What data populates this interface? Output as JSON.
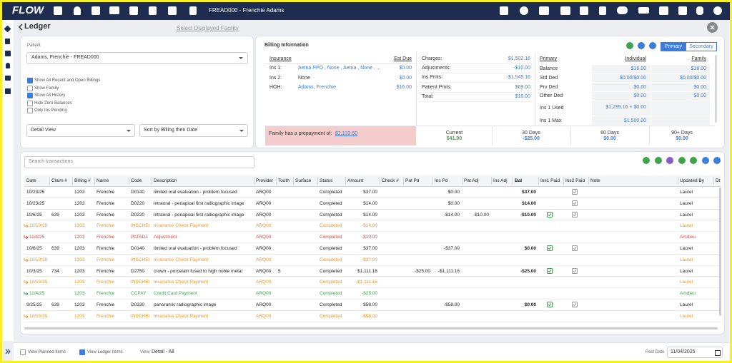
{
  "header": {
    "logo": "FLOW",
    "patient": "FREAD000 - Frenchie Adams"
  },
  "ledger": {
    "title": "Ledger",
    "facility": "Select Displayed Facility"
  },
  "patient_panel": {
    "label": "Patient",
    "patient": "Adams, Frenchie - FREAD000",
    "options": [
      {
        "label": "Show All Recent and Open Billings",
        "checked": true
      },
      {
        "label": "Show Family",
        "checked": false
      },
      {
        "label": "Show All History",
        "checked": true
      },
      {
        "label": "Hide Zero Balances",
        "checked": false
      },
      {
        "label": "Only Ins Pending",
        "checked": false
      }
    ],
    "view": "Detail View",
    "sort": "Sort by Billing then Date"
  },
  "billing": {
    "title": "Billing Information",
    "tabs": [
      {
        "label": "Primary",
        "active": true
      },
      {
        "label": "Secondary",
        "active": false
      }
    ],
    "insurance_header": [
      "Insurance",
      "Est Due"
    ],
    "insurance_rows": [
      [
        "Ins 1:",
        "Aetna PPO , None , Aetna , None , ...",
        "$0.00"
      ],
      [
        "Ins 2:",
        "None",
        "$0.00"
      ],
      [
        "HOH:",
        "Adams, Frenchie",
        "$16.00"
      ]
    ],
    "totals": [
      [
        "Charges:",
        "$1,502.16"
      ],
      [
        "Adjustments:",
        "-$10.00"
      ],
      [
        "Ins Pmts:",
        "-$1,545.16"
      ],
      [
        "Patient Pmts:",
        "$69.00"
      ],
      [
        "Total:",
        "$16.00"
      ]
    ],
    "deductible_header": [
      "Primary",
      "Individual",
      "Family"
    ],
    "deductible_rows": [
      [
        "Balance",
        "$16.00",
        "$16.00"
      ],
      [
        "Std Ded",
        "$0.00/$0.00",
        "$0.00/$0.00"
      ],
      [
        "Prv Ded",
        "$0.00",
        "$0.00"
      ],
      [
        "Other Ded",
        "$0.00",
        "$0.00"
      ],
      [
        "Ins 1 Used",
        "$1,295.16 + $0.00",
        null
      ],
      [
        "Ins 1 Max",
        "$1,500.00",
        null
      ]
    ],
    "prepayment_label": "Family has a prepayment of:",
    "prepayment_amount": "$2,133.50",
    "aging": [
      [
        "Current",
        "$41.00"
      ],
      [
        "30 Days",
        "-$25.00"
      ],
      [
        "60 Days",
        "$0.00"
      ],
      [
        "90+ Days",
        "$0.00"
      ]
    ]
  },
  "transactions": {
    "search_placeholder": "Search transactions",
    "columns": [
      "Date",
      "Claim #",
      "Billing #",
      "Name",
      "Code",
      "Description",
      "Provider",
      "Tooth",
      "Surface",
      "Status",
      "Amount",
      "Check #",
      "Pat Pd",
      "Ins Pd",
      "Pat Adj",
      "Ins Adj",
      "Bal",
      "Ins1 Paid",
      "Ins2 Paid",
      "Note",
      "Updated By",
      "Dt"
    ],
    "rows": [
      {
        "kind": "charge",
        "ins1_paid": false,
        "ins2_paid": true,
        "cells": [
          "10/23/25",
          null,
          "1203",
          "Frenchie",
          "D0140",
          "limited oral evaluation - problem focused",
          "ARQ00",
          null,
          null,
          "Completed",
          "$37.00",
          null,
          null,
          "$0.00",
          null,
          null,
          "$37.00",
          null,
          null,
          null,
          "Laurel",
          null
        ]
      },
      {
        "kind": "charge",
        "ins1_paid": false,
        "ins2_paid": true,
        "cells": [
          "10/23/25",
          null,
          "1203",
          "Frenchie",
          "D0220",
          "intraoral - periapical first radiographic image",
          "ARQ00",
          null,
          null,
          "Completed",
          "$14.00",
          null,
          null,
          "$0.00",
          null,
          null,
          "$14.00",
          null,
          null,
          null,
          "Laurel",
          null
        ]
      },
      {
        "kind": "charge",
        "ins1_paid": true,
        "ins2_paid": true,
        "cells": [
          "10/6/25",
          "639",
          "1203",
          "Frenchie",
          "D0220",
          "intraoral - periapical first radiographic image",
          "ARQ00",
          null,
          null,
          "Completed",
          "$14.00",
          null,
          null,
          "-$14.00",
          "-$10.00",
          null,
          "-$10.00",
          null,
          null,
          null,
          "Laurel",
          null
        ]
      },
      {
        "kind": "insurance_payment",
        "cells": [
          "10/10/25",
          null,
          "1203",
          "Frenchie",
          "INSCHECK",
          "Insurance Check Payment",
          "ARQ00",
          null,
          null,
          "Completed",
          "-$14.00",
          null,
          null,
          null,
          null,
          null,
          null,
          null,
          null,
          null,
          "Laurel",
          null
        ]
      },
      {
        "kind": "adjustment",
        "cells": [
          "11/4/25",
          null,
          "1203",
          "Frenchie",
          "PATADJ",
          "Adjustment",
          "ARQ00",
          null,
          null,
          "Completed",
          "-$10.00",
          null,
          null,
          null,
          null,
          null,
          null,
          null,
          null,
          null,
          "Amdieu",
          null
        ]
      },
      {
        "kind": "charge",
        "ins1_paid": true,
        "ins2_paid": true,
        "cells": [
          "10/6/25",
          "639",
          "1203",
          "Frenchie",
          "D0140",
          "limited oral evaluation - problem focused",
          "ARQ00",
          null,
          null,
          "Completed",
          "$37.00",
          null,
          null,
          "-$37.00",
          null,
          null,
          "$0.00",
          null,
          null,
          null,
          "Laurel",
          null
        ]
      },
      {
        "kind": "insurance_payment",
        "cells": [
          "10/10/25",
          null,
          "1203",
          "Frenchie",
          "INSCHECK",
          "Insurance Check Payment",
          "ARQ00",
          null,
          null,
          "Completed",
          "-$37.00",
          null,
          null,
          null,
          null,
          null,
          null,
          null,
          null,
          null,
          "Laurel",
          null
        ]
      },
      {
        "kind": "charge",
        "ins1_paid": true,
        "ins2_paid": true,
        "cells": [
          "10/3/25",
          "734",
          "1203",
          "Frenchie",
          "D2750",
          "crown - porcelain fused to high noble metal",
          "ARQ00",
          "5",
          null,
          "Completed",
          "$1,111.16",
          null,
          "-$25.00",
          "-$1,111.16",
          null,
          null,
          "-$25.00",
          null,
          null,
          null,
          "Laurel",
          null
        ]
      },
      {
        "kind": "insurance_payment",
        "cells": [
          "10/10/25",
          null,
          "1203",
          "Frenchie",
          "INSCHECK",
          "Insurance Check Payment",
          "ARQ00",
          null,
          null,
          "Completed",
          "-$1,111.16",
          null,
          null,
          null,
          null,
          null,
          null,
          null,
          null,
          null,
          "Laurel",
          null
        ]
      },
      {
        "kind": "patient_payment",
        "cells": [
          "11/4/25",
          null,
          "1203",
          "Frenchie",
          "CCPAY",
          "Credit Card Payment",
          "ARQ00",
          null,
          null,
          "Completed",
          "-$25.00",
          null,
          null,
          null,
          null,
          null,
          null,
          null,
          null,
          null,
          "Amdieu",
          null
        ]
      },
      {
        "kind": "charge",
        "ins1_paid": true,
        "ins2_paid": true,
        "cells": [
          "9/25/25",
          "639",
          "1203",
          "Frenchie",
          "D0330",
          "panoramic radiographic image",
          "ARQ00",
          null,
          null,
          "Completed",
          "$58.00",
          null,
          null,
          "-$58.00",
          null,
          null,
          "$0.00",
          null,
          null,
          null,
          "Laurel",
          null
        ]
      },
      {
        "kind": "insurance_payment",
        "cells": [
          "10/10/25",
          null,
          "1203",
          "Frenchie",
          "INSCHECK",
          "Insurance Check Payment",
          "ARQ00",
          null,
          null,
          "Completed",
          "-$58.00",
          null,
          null,
          null,
          null,
          null,
          null,
          null,
          null,
          null,
          "Laurel",
          null
        ]
      }
    ]
  },
  "footer": {
    "options": [
      {
        "label": "View Planned Items",
        "checked": false
      },
      {
        "label": "View Ledger Items",
        "checked": true
      }
    ],
    "view_label": "View:",
    "view_value": "Detail - All",
    "post_date_label": "Post Date",
    "post_date": "11/04/2025"
  }
}
